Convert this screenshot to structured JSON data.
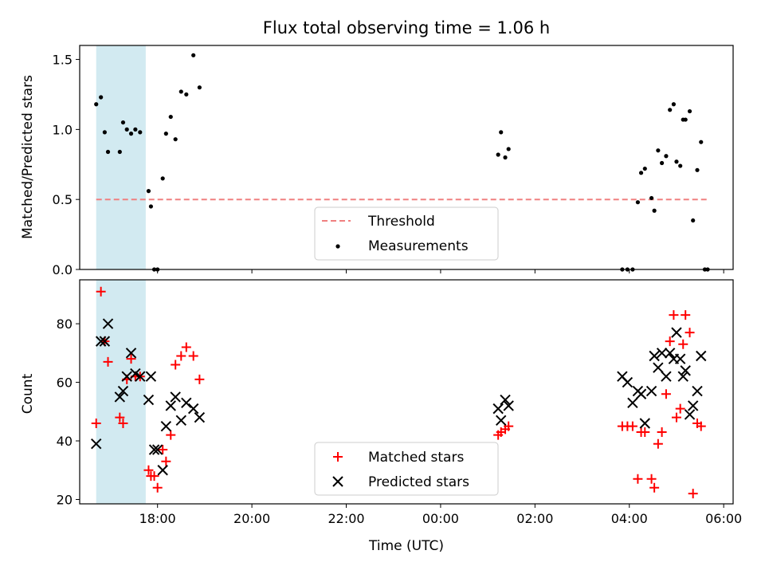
{
  "chart_data": [
    {
      "type": "scatter",
      "title": "Flux total observing time = 1.06 h",
      "xlabel": "",
      "ylabel": "Matched/Predicted stars",
      "xlim": [
        16.35,
        30.2
      ],
      "ylim": [
        0,
        1.6
      ],
      "yticks": [
        0.0,
        0.5,
        1.0,
        1.5
      ],
      "ytick_labels": [
        "0.0",
        "0.5",
        "1.0",
        "1.5"
      ],
      "xticks": [
        18,
        20,
        22,
        24,
        26,
        28,
        30
      ],
      "shaded_span": {
        "x0": 16.7,
        "x1": 17.75,
        "color": "#add8e6"
      },
      "threshold": {
        "name": "Threshold",
        "value": 0.5,
        "x0": 16.7,
        "x1": 29.65,
        "color": "#f08080"
      },
      "legend": [
        "Threshold",
        "Measurements"
      ],
      "legend_loc": "lower-center",
      "series": [
        {
          "name": "Measurements",
          "marker": "dot",
          "color": "#000000",
          "x": [
            16.7,
            16.8,
            16.88,
            16.95,
            17.2,
            17.27,
            17.35,
            17.44,
            17.53,
            17.63,
            17.81,
            17.86,
            17.93,
            18.0,
            18.11,
            18.18,
            18.28,
            18.38,
            18.5,
            18.61,
            18.76,
            18.89,
            25.22,
            25.28,
            25.37,
            25.44,
            27.85,
            27.96,
            28.07,
            28.18,
            28.25,
            28.33,
            28.47,
            28.53,
            28.61,
            28.69,
            28.78,
            28.86,
            28.94,
            29.0,
            29.08,
            29.14,
            29.19,
            29.28,
            29.35,
            29.44,
            29.52,
            29.6,
            29.66
          ],
          "y": [
            1.18,
            1.23,
            0.98,
            0.84,
            0.84,
            1.05,
            1.0,
            0.97,
            1.0,
            0.98,
            0.56,
            0.45,
            0.0,
            0.0,
            0.65,
            0.97,
            1.09,
            0.93,
            1.27,
            1.25,
            1.53,
            1.3,
            0.82,
            0.98,
            0.8,
            0.86,
            0.0,
            0.0,
            0.0,
            0.48,
            0.69,
            0.72,
            0.51,
            0.42,
            0.85,
            0.76,
            0.81,
            1.14,
            1.18,
            0.77,
            0.74,
            1.07,
            1.07,
            1.13,
            0.35,
            0.71,
            0.91,
            0.0,
            0.0
          ]
        }
      ]
    },
    {
      "type": "scatter",
      "title": "",
      "xlabel": "Time (UTC)",
      "ylabel": "Count",
      "xlim": [
        16.35,
        30.2
      ],
      "ylim": [
        18.5,
        95
      ],
      "yticks": [
        20,
        40,
        60,
        80
      ],
      "ytick_labels": [
        "20",
        "40",
        "60",
        "80"
      ],
      "xticks": [
        18,
        20,
        22,
        24,
        26,
        28,
        30
      ],
      "xtick_labels": [
        "18:00",
        "20:00",
        "22:00",
        "00:00",
        "02:00",
        "04:00",
        "06:00"
      ],
      "shaded_span": {
        "x0": 16.7,
        "x1": 17.75,
        "color": "#add8e6"
      },
      "legend": [
        "Matched stars",
        "Predicted stars"
      ],
      "legend_loc": "lower-center",
      "series": [
        {
          "name": "Matched stars",
          "marker": "plus",
          "color": "#ff0000",
          "x": [
            16.7,
            16.8,
            16.88,
            16.95,
            17.2,
            17.27,
            17.35,
            17.44,
            17.53,
            17.63,
            17.81,
            17.86,
            17.93,
            18.0,
            18.11,
            18.18,
            18.28,
            18.38,
            18.5,
            18.61,
            18.76,
            18.89,
            25.22,
            25.28,
            25.37,
            25.44,
            27.85,
            27.96,
            28.07,
            28.18,
            28.25,
            28.33,
            28.47,
            28.53,
            28.61,
            28.69,
            28.78,
            28.86,
            28.94,
            29.0,
            29.08,
            29.14,
            29.19,
            29.28,
            29.35,
            29.44,
            29.52
          ],
          "y": [
            46,
            91,
            74,
            67,
            48,
            46,
            61,
            68,
            62,
            62,
            30,
            28,
            28,
            24,
            37,
            33,
            42,
            66,
            69,
            72,
            69,
            61,
            42,
            43,
            44,
            45,
            45,
            45,
            45,
            27,
            43,
            43,
            27,
            24,
            39,
            43,
            56,
            74,
            83,
            48,
            51,
            73,
            83,
            77,
            22,
            46,
            45
          ]
        },
        {
          "name": "Predicted stars",
          "marker": "x",
          "color": "#000000",
          "x": [
            16.7,
            16.8,
            16.88,
            16.95,
            17.2,
            17.27,
            17.35,
            17.44,
            17.53,
            17.63,
            17.81,
            17.86,
            17.93,
            18.0,
            18.11,
            18.18,
            18.28,
            18.38,
            18.5,
            18.61,
            18.76,
            18.89,
            25.22,
            25.28,
            25.37,
            25.44,
            27.85,
            27.96,
            28.07,
            28.18,
            28.25,
            28.33,
            28.47,
            28.53,
            28.61,
            28.69,
            28.78,
            28.86,
            28.94,
            29.0,
            29.08,
            29.14,
            29.19,
            29.28,
            29.35,
            29.44,
            29.52
          ],
          "y": [
            39,
            74,
            74,
            80,
            55,
            57,
            62,
            70,
            63,
            62,
            54,
            62,
            37,
            37,
            30,
            45,
            52,
            55,
            47,
            53,
            51,
            48,
            51,
            47,
            54,
            52,
            62,
            60,
            53,
            57,
            56,
            46,
            57,
            69,
            65,
            70,
            62,
            70,
            68,
            77,
            68,
            62,
            64,
            49,
            52,
            57,
            69
          ]
        }
      ]
    }
  ]
}
